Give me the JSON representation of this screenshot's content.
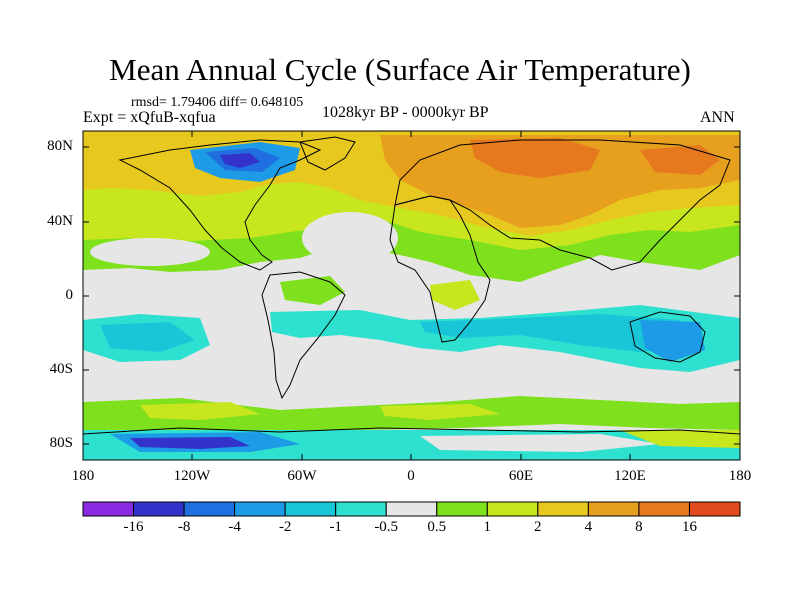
{
  "title": "Mean Annual Cycle (Surface Air Temperature)",
  "stats": "rmsd= 1.79406 diff= 0.648105",
  "experiment": "Expt = xQfuB-xqfua",
  "period": "1028kyr BP - 0000kyr BP",
  "season": "ANN",
  "lat_ticks": [
    "80N",
    "40N",
    "0",
    "40S",
    "80S"
  ],
  "lon_ticks": [
    "180",
    "120W",
    "60W",
    "0",
    "60E",
    "120E",
    "180"
  ],
  "colorbar": {
    "colors": [
      "#8a2be2",
      "#3333cc",
      "#1f6fe0",
      "#1e9be6",
      "#19c6d8",
      "#2ee0cf",
      "#e6e6e6",
      "#7fe01e",
      "#c8e61e",
      "#e6c81e",
      "#e6a01e",
      "#e6781e",
      "#e04a1e"
    ],
    "labels": [
      "-16",
      "-8",
      "-4",
      "-2",
      "-1",
      "-0.5",
      "0.5",
      "1",
      "2",
      "4",
      "8",
      "16"
    ]
  },
  "map_colors": {
    "neutral": "#e6e6e6",
    "slight_warm": "#7fe01e",
    "warm_1": "#c8e61e",
    "warm_2": "#e6c81e",
    "warm_4": "#e6a01e",
    "warm_8": "#e6781e",
    "cool_05": "#2ee0cf",
    "cool_1": "#19c6d8",
    "cool_2": "#1e9be6",
    "cool_4": "#1f6fe0",
    "cool_8": "#3333cc"
  }
}
